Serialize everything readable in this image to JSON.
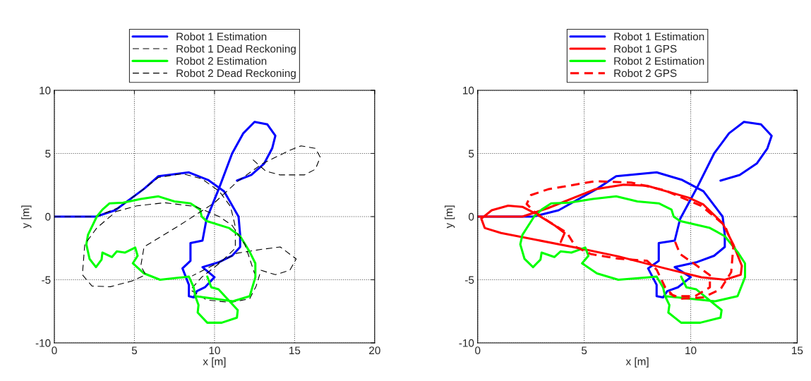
{
  "chart_data": [
    {
      "type": "line",
      "xlabel": "x [m]",
      "ylabel": "y [m]",
      "xlim": [
        0,
        20
      ],
      "ylim": [
        -10,
        10
      ],
      "xticks": [
        0,
        5,
        10,
        15,
        20
      ],
      "yticks": [
        -10,
        -5,
        0,
        5,
        10
      ],
      "grid": true,
      "legend": "top",
      "series": [
        {
          "name": "Robot 1 Estimation",
          "color": "#0000ff",
          "line_style": "solid",
          "x": [
            0,
            2.6,
            3.8,
            5.6,
            6.5,
            8.4,
            9.6,
            10.6,
            11.5,
            11.6,
            11.6,
            11.1,
            10.3,
            9.25,
            10.0,
            9.4,
            8.9,
            8.7,
            8.4,
            8.4,
            8.0,
            8.5,
            8.5,
            9.25,
            9.5,
            10.3,
            11.1,
            11.8,
            12.5,
            13.3,
            13.8,
            13.6,
            13.1,
            12.3,
            11.4
          ],
          "values": [
            0,
            0,
            0.5,
            2.2,
            3.2,
            3.5,
            2.9,
            2.0,
            0,
            -1.45,
            -2.4,
            -3.1,
            -3.6,
            -4.0,
            -4.8,
            -5.6,
            -5.9,
            -6.4,
            -6.3,
            -5.4,
            -4.1,
            -3.5,
            -2.1,
            -1.9,
            -0.2,
            2.3,
            5.0,
            6.6,
            7.5,
            7.3,
            6.4,
            5.4,
            4.2,
            3.3,
            2.85
          ]
        },
        {
          "name": "Robot 1 Dead Reckoning",
          "color": "#000000",
          "line_style": "dashed",
          "x": [
            0,
            2.6,
            4,
            5.5,
            6.5,
            8,
            9.2,
            10.3,
            11,
            11.3,
            11.3,
            10.4,
            9.2,
            8.5,
            9.5,
            11,
            12.2,
            12.6,
            12.9,
            13.8,
            14.7,
            15.1,
            14.1,
            12.9,
            11.4,
            10,
            8.6
          ],
          "values": [
            0,
            0,
            0.7,
            2.1,
            3.1,
            3.4,
            3.0,
            2.0,
            0.8,
            -0.8,
            -2.5,
            -3.6,
            -4.8,
            -5.8,
            -6.6,
            -6.8,
            -6.5,
            -5.5,
            -4.25,
            -4.6,
            -4.25,
            -3.35,
            -2.4,
            -2.6,
            -2.9,
            -3.8,
            -4.7
          ]
        },
        {
          "name": "Robot 2 Estimation",
          "color": "#00ff00",
          "line_style": "solid",
          "x": [
            9.55,
            9.8,
            10.25,
            11.45,
            11.4,
            10.45,
            9.55,
            8.95,
            9.0,
            8.8,
            11.15,
            12.2,
            12.55,
            12.55,
            12.2,
            11.6,
            10.9,
            9.5,
            9.2,
            9.1,
            8.5,
            7.5,
            6.5,
            5.4,
            4.3,
            3.45,
            3.0,
            2.65,
            2.1,
            2.0,
            2.2,
            2.6,
            2.95,
            3.0,
            3.6,
            3.9,
            4.4,
            5.05,
            5.2,
            4.9,
            5.6,
            6.6,
            8.05,
            8.4,
            8.7,
            8.8
          ],
          "values": [
            -4.75,
            -5.6,
            -5.75,
            -7.4,
            -8.0,
            -8.4,
            -8.4,
            -7.6,
            -7.0,
            -6.3,
            -6.7,
            -6.3,
            -4.8,
            -3.7,
            -2.8,
            -1.55,
            -0.9,
            -0.35,
            0,
            0.55,
            1.05,
            1.2,
            1.6,
            1.4,
            1.1,
            1.05,
            0.55,
            0,
            -1.45,
            -2.2,
            -3.35,
            -4.0,
            -3.4,
            -2.85,
            -3.2,
            -2.75,
            -2.85,
            -2.45,
            -3.1,
            -3.7,
            -4.5,
            -5.0,
            -4.8,
            -4.75,
            -5.6,
            -6.3
          ]
        },
        {
          "name": "Robot 2 Dead Reckoning",
          "color": "#000000",
          "line_style": "dashed",
          "x": [
            12.4,
            13.2,
            14.1,
            15.6,
            16.3,
            16.6,
            16.3,
            15.4,
            14.7,
            13.0,
            11.45,
            10,
            7.8,
            5.6,
            5.4,
            5.7,
            4.85,
            3.5,
            2.35,
            1.75,
            1.9,
            2.65,
            3.85,
            5.15,
            6.9,
            8.8,
            10.3,
            11.1,
            11.9,
            12.5
          ],
          "values": [
            4.5,
            3.6,
            3.3,
            3.3,
            3.75,
            4.7,
            5.4,
            5.6,
            5.25,
            4.2,
            2.8,
            1.1,
            -0.7,
            -2.4,
            -3.9,
            -4.6,
            -5.1,
            -5.55,
            -5.5,
            -4.6,
            -2.2,
            -0.9,
            0.4,
            0.85,
            1.1,
            0.8,
            0,
            -0.7,
            -2.2,
            -4.5
          ]
        }
      ]
    },
    {
      "type": "line",
      "xlabel": "x [m]",
      "ylabel": "y [m]",
      "xlim": [
        0,
        15
      ],
      "ylim": [
        -10,
        10
      ],
      "xticks": [
        0,
        5,
        10,
        15
      ],
      "yticks": [
        -10,
        -5,
        0,
        5,
        10
      ],
      "grid": true,
      "legend": "top",
      "series": [
        {
          "name": "Robot 1 Estimation",
          "color": "#0000ff",
          "line_style": "solid",
          "x": [
            0,
            2.6,
            3.8,
            5.6,
            6.5,
            8.4,
            9.6,
            10.6,
            11.5,
            11.6,
            11.6,
            11.1,
            10.3,
            9.25,
            10.0,
            9.4,
            8.9,
            8.7,
            8.4,
            8.4,
            8.0,
            8.5,
            8.5,
            9.25,
            9.5,
            10.3,
            11.1,
            11.8,
            12.5,
            13.3,
            13.8,
            13.6,
            13.1,
            12.3,
            11.4
          ],
          "values": [
            0,
            0,
            0.5,
            2.2,
            3.2,
            3.5,
            2.9,
            2.0,
            0,
            -1.45,
            -2.4,
            -3.1,
            -3.6,
            -4.0,
            -4.8,
            -5.6,
            -5.9,
            -6.4,
            -6.3,
            -5.4,
            -4.1,
            -3.5,
            -2.1,
            -1.9,
            -0.2,
            2.3,
            5.0,
            6.6,
            7.5,
            7.3,
            6.4,
            5.4,
            4.2,
            3.3,
            2.85
          ]
        },
        {
          "name": "Robot 1 GPS",
          "color": "#ff0000",
          "line_style": "solid",
          "x": [
            0,
            2.1,
            3.3,
            5.5,
            6.85,
            7.95,
            9.9,
            10.6,
            11.5,
            12.0,
            12.4,
            12.35,
            11.6,
            10.5,
            8.8,
            6.6,
            4.75,
            1.1,
            0.33,
            0.17,
            0.66,
            1.43,
            2.1,
            2.76,
            3.64,
            4.08,
            3.9
          ],
          "values": [
            0,
            0,
            0.67,
            2.16,
            2.53,
            2.44,
            1.5,
            0.95,
            -0.54,
            -2.2,
            -3.9,
            -4.6,
            -5.0,
            -4.8,
            -4.1,
            -3.15,
            -2.5,
            -1.3,
            -0.9,
            -0.16,
            0.5,
            0.86,
            0.77,
            0.2,
            -0.73,
            -1.3,
            -2.0
          ]
        },
        {
          "name": "Robot 2 Estimation",
          "color": "#00ff00",
          "line_style": "solid",
          "x": [
            9.55,
            9.8,
            10.25,
            11.45,
            11.4,
            10.45,
            9.55,
            8.95,
            9.0,
            8.8,
            11.15,
            12.2,
            12.55,
            12.55,
            12.2,
            11.6,
            10.9,
            9.5,
            9.2,
            9.1,
            8.5,
            7.5,
            6.5,
            5.4,
            4.3,
            3.45,
            3.0,
            2.65,
            2.1,
            2.0,
            2.2,
            2.6,
            2.95,
            3.0,
            3.6,
            3.9,
            4.4,
            5.05,
            5.2,
            4.9,
            5.6,
            6.6,
            8.05,
            8.4,
            8.7,
            8.8
          ],
          "values": [
            -4.75,
            -5.6,
            -5.75,
            -7.4,
            -8.0,
            -8.4,
            -8.4,
            -7.6,
            -7.0,
            -6.3,
            -6.7,
            -6.3,
            -4.8,
            -3.7,
            -2.8,
            -1.55,
            -0.9,
            -0.35,
            0,
            0.55,
            1.05,
            1.2,
            1.6,
            1.4,
            1.1,
            1.05,
            0.55,
            0,
            -1.45,
            -2.2,
            -3.35,
            -4.0,
            -3.4,
            -2.85,
            -3.2,
            -2.75,
            -2.85,
            -2.45,
            -3.1,
            -3.7,
            -4.5,
            -5.0,
            -4.8,
            -4.75,
            -5.6,
            -6.3
          ]
        },
        {
          "name": "Robot 2 GPS",
          "color": "#ff0000",
          "line_style": "dashed",
          "x": [
            9.27,
            9.5,
            10.3,
            10.9,
            10.9,
            10.2,
            9.2,
            8.8,
            8.4,
            7.95,
            6.6,
            5.3,
            4.6,
            4.2,
            3.3,
            2.65,
            2.3,
            2.5,
            3.3,
            5.5,
            7.2,
            8.8,
            10.5,
            11.6,
            12.0,
            11.9,
            11.4,
            10.6,
            9.6,
            9.0
          ],
          "values": [
            -2.0,
            -2.96,
            -3.9,
            -4.64,
            -5.6,
            -6.3,
            -6.3,
            -5.6,
            -4.2,
            -3.5,
            -3.33,
            -2.96,
            -2.4,
            -1.3,
            -0.35,
            0.4,
            1.0,
            1.7,
            2.16,
            2.8,
            2.7,
            2.07,
            0.85,
            -0.7,
            -2.4,
            -4.4,
            -5.75,
            -6.4,
            -6.5,
            -6.1
          ]
        }
      ]
    }
  ]
}
